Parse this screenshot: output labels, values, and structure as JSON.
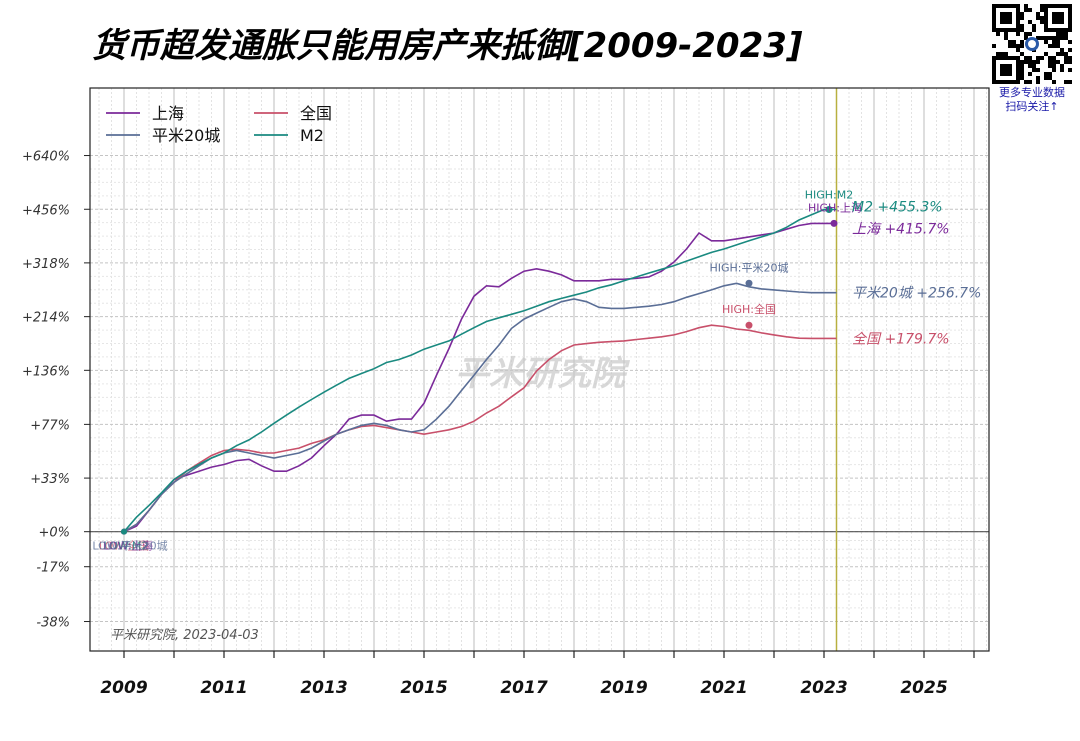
{
  "title": "货币超发通胀只能用房产来抵御[2009-2023]",
  "qr": {
    "caption_line1": "更多专业数据",
    "caption_line2": "扫码关注↑"
  },
  "watermark": "平米研究院",
  "source_note": "平米研究院, 2023-04-03",
  "colors": {
    "shanghai": "#7b2a9a",
    "quanguo": "#c8506a",
    "pingmi20": "#5a6e96",
    "m2": "#1a8a80",
    "vline": "#b8b040"
  },
  "chart_data": {
    "type": "line",
    "title": "货币超发通胀只能用房产来抵御[2009-2023]",
    "x_ticks": [
      2009,
      2010,
      2011,
      2012,
      2013,
      2014,
      2015,
      2016,
      2017,
      2018,
      2019,
      2020,
      2021,
      2022,
      2023,
      2024,
      2025,
      2026
    ],
    "x_tick_labels": [
      "2009",
      "2011",
      "2013",
      "2015",
      "2017",
      "2019",
      "2021",
      "2023",
      "2025"
    ],
    "y_ticks": [
      -38,
      -17,
      0,
      33,
      77,
      136,
      214,
      318,
      456,
      640
    ],
    "y_tick_labels": [
      "-38%",
      "-17%",
      "+0%",
      "+33%",
      "+77%",
      "+136%",
      "+214%",
      "+318%",
      "+456%",
      "+640%"
    ],
    "y_scale": "log1p",
    "xlim": [
      2008.32,
      2026.3
    ],
    "ylim": [
      -47,
      960
    ],
    "grid": true,
    "legend_position": "top-left",
    "reference_date": 2023.25,
    "series": [
      {
        "key": "shanghai",
        "name": "上海",
        "end_label": "上海 +415.7%",
        "x": [
          2009.0,
          2009.25,
          2009.5,
          2009.75,
          2010.0,
          2010.25,
          2010.5,
          2010.75,
          2011.0,
          2011.25,
          2011.5,
          2011.75,
          2012.0,
          2012.25,
          2012.5,
          2012.75,
          2013.0,
          2013.25,
          2013.5,
          2013.75,
          2014.0,
          2014.25,
          2014.5,
          2014.75,
          2015.0,
          2015.25,
          2015.5,
          2015.75,
          2016.0,
          2016.25,
          2016.5,
          2016.75,
          2017.0,
          2017.25,
          2017.5,
          2017.75,
          2018.0,
          2018.25,
          2018.5,
          2018.75,
          2019.0,
          2019.25,
          2019.5,
          2019.75,
          2020.0,
          2020.25,
          2020.5,
          2020.75,
          2021.0,
          2021.25,
          2021.5,
          2021.75,
          2022.0,
          2022.25,
          2022.5,
          2022.75,
          2023.0,
          2023.25
        ],
        "y": [
          0,
          3,
          12,
          22,
          32,
          35,
          38,
          41,
          43,
          46,
          47,
          42,
          38,
          38,
          42,
          48,
          58,
          68,
          82,
          86,
          86,
          80,
          82,
          82,
          98,
          130,
          165,
          210,
          250,
          270,
          268,
          285,
          300,
          305,
          300,
          292,
          280,
          280,
          280,
          283,
          283,
          285,
          288,
          300,
          320,
          350,
          390,
          370,
          370,
          375,
          380,
          385,
          390,
          400,
          410,
          415.7,
          415.7,
          415.7
        ]
      },
      {
        "key": "quanguo",
        "name": "全国",
        "end_label": "全国 +179.7%",
        "x": [
          2009.0,
          2009.25,
          2009.5,
          2009.75,
          2010.0,
          2010.25,
          2010.5,
          2010.75,
          2011.0,
          2011.25,
          2011.5,
          2011.75,
          2012.0,
          2012.25,
          2012.5,
          2012.75,
          2013.0,
          2013.25,
          2013.5,
          2013.75,
          2014.0,
          2014.25,
          2014.5,
          2014.75,
          2015.0,
          2015.25,
          2015.5,
          2015.75,
          2016.0,
          2016.25,
          2016.5,
          2016.75,
          2017.0,
          2017.25,
          2017.5,
          2017.75,
          2018.0,
          2018.25,
          2018.5,
          2018.75,
          2019.0,
          2019.25,
          2019.5,
          2019.75,
          2020.0,
          2020.25,
          2020.5,
          2020.75,
          2021.0,
          2021.25,
          2021.5,
          2021.75,
          2022.0,
          2022.25,
          2022.5,
          2022.75,
          2023.0,
          2023.25
        ],
        "y": [
          0,
          4,
          12,
          22,
          30,
          38,
          44,
          50,
          54,
          55,
          54,
          52,
          52,
          54,
          56,
          60,
          63,
          68,
          72,
          75,
          76,
          74,
          72,
          70,
          68,
          70,
          72,
          75,
          80,
          88,
          95,
          105,
          115,
          135,
          150,
          162,
          170,
          172,
          174,
          175,
          176,
          178,
          180,
          182,
          185,
          190,
          196,
          200,
          198,
          194,
          192,
          188,
          185,
          182,
          180,
          179.7,
          179.7,
          179.7
        ]
      },
      {
        "key": "pingmi20",
        "name": "平米20城",
        "end_label": "平米20城 +256.7%",
        "x": [
          2009.0,
          2009.25,
          2009.5,
          2009.75,
          2010.0,
          2010.25,
          2010.5,
          2010.75,
          2011.0,
          2011.25,
          2011.5,
          2011.75,
          2012.0,
          2012.25,
          2012.5,
          2012.75,
          2013.0,
          2013.25,
          2013.5,
          2013.75,
          2014.0,
          2014.25,
          2014.5,
          2014.75,
          2015.0,
          2015.25,
          2015.5,
          2015.75,
          2016.0,
          2016.25,
          2016.5,
          2016.75,
          2017.0,
          2017.25,
          2017.5,
          2017.75,
          2018.0,
          2018.25,
          2018.5,
          2018.75,
          2019.0,
          2019.25,
          2019.5,
          2019.75,
          2020.0,
          2020.25,
          2020.5,
          2020.75,
          2021.0,
          2021.25,
          2021.5,
          2021.75,
          2022.0,
          2022.25,
          2022.5,
          2022.75,
          2023.0,
          2023.25
        ],
        "y": [
          0,
          4,
          12,
          22,
          30,
          36,
          42,
          48,
          52,
          54,
          52,
          50,
          48,
          50,
          52,
          56,
          62,
          68,
          72,
          76,
          78,
          76,
          72,
          70,
          72,
          82,
          95,
          112,
          130,
          150,
          170,
          195,
          210,
          220,
          230,
          240,
          245,
          240,
          230,
          228,
          228,
          230,
          232,
          235,
          240,
          248,
          255,
          262,
          270,
          275,
          268,
          264,
          262,
          260,
          258,
          256.7,
          256.7,
          256.7
        ]
      },
      {
        "key": "m2",
        "name": "M2",
        "end_label": "M2 +455.3%",
        "x": [
          2009.0,
          2009.25,
          2009.5,
          2009.75,
          2010.0,
          2010.25,
          2010.5,
          2010.75,
          2011.0,
          2011.25,
          2011.5,
          2011.75,
          2012.0,
          2012.25,
          2012.5,
          2012.75,
          2013.0,
          2013.25,
          2013.5,
          2013.75,
          2014.0,
          2014.25,
          2014.5,
          2014.75,
          2015.0,
          2015.25,
          2015.5,
          2015.75,
          2016.0,
          2016.25,
          2016.5,
          2016.75,
          2017.0,
          2017.25,
          2017.5,
          2017.75,
          2018.0,
          2018.25,
          2018.5,
          2018.75,
          2019.0,
          2019.25,
          2019.5,
          2019.75,
          2020.0,
          2020.25,
          2020.5,
          2020.75,
          2021.0,
          2021.25,
          2021.5,
          2021.75,
          2022.0,
          2022.25,
          2022.5,
          2022.75,
          2023.0,
          2023.25
        ],
        "y": [
          0,
          8,
          15,
          23,
          32,
          38,
          43,
          48,
          52,
          58,
          63,
          70,
          78,
          86,
          94,
          102,
          110,
          118,
          126,
          132,
          138,
          146,
          150,
          156,
          164,
          170,
          176,
          186,
          196,
          206,
          212,
          218,
          224,
          232,
          240,
          246,
          252,
          258,
          266,
          272,
          280,
          288,
          296,
          304,
          312,
          322,
          332,
          342,
          350,
          360,
          370,
          380,
          390,
          405,
          425,
          440,
          455.3,
          455.3
        ]
      }
    ],
    "high_markers": [
      {
        "key": "m2",
        "label": "HIGH:M2",
        "x": 2023.1,
        "y": 455.3
      },
      {
        "key": "shanghai",
        "label": "HIGH:上海",
        "x": 2023.2,
        "y": 415.7
      },
      {
        "key": "pingmi20",
        "label": "HIGH:平米20城",
        "x": 2021.5,
        "y": 275
      },
      {
        "key": "quanguo",
        "label": "HIGH:全国",
        "x": 2021.5,
        "y": 200
      }
    ],
    "start_labels": [
      {
        "key": "quanguo",
        "label": "LOW:全国"
      },
      {
        "key": "m2",
        "label": "LOW:M2"
      },
      {
        "key": "shanghai",
        "label": "LOW:上海"
      },
      {
        "key": "pingmi20",
        "label": "LOW:平米20城"
      }
    ]
  }
}
